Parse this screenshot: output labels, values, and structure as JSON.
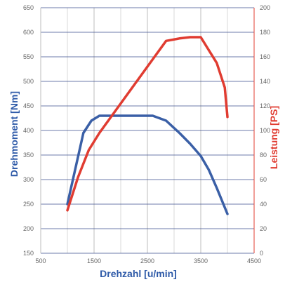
{
  "chart_data": {
    "type": "line",
    "x_axis": {
      "label": "Drehzahl [u/min]",
      "range": [
        500,
        4500
      ],
      "ticks": [
        500,
        1500,
        2500,
        3500,
        4500
      ],
      "minor_gridlines": [
        1000,
        2000,
        3000,
        4000
      ],
      "color": "#2e5aa8"
    },
    "y_left": {
      "label": "Drehmoment [Nm]",
      "range": [
        150,
        650
      ],
      "ticks": [
        150,
        200,
        250,
        300,
        350,
        400,
        450,
        500,
        550,
        600,
        650
      ],
      "color": "#2e5aa8"
    },
    "y_right": {
      "label": "Leistung [PS]",
      "range": [
        0,
        200
      ],
      "ticks": [
        0,
        20,
        40,
        60,
        80,
        100,
        120,
        140,
        160,
        180,
        200
      ],
      "color": "#e03c31"
    },
    "grid": true,
    "series": [
      {
        "axis": "left",
        "color": "#3a5fa6",
        "x": [
          1000,
          1300,
          1450,
          1600,
          2000,
          2600,
          2850,
          3100,
          3300,
          3500,
          3650,
          3800,
          4000
        ],
        "y": [
          250,
          395,
          420,
          430,
          430,
          430,
          420,
          395,
          373,
          348,
          320,
          283,
          230
        ]
      },
      {
        "axis": "right",
        "color": "#e03c31",
        "x": [
          1000,
          1200,
          1400,
          1600,
          2000,
          2400,
          2600,
          2850,
          3100,
          3300,
          3500,
          3800,
          3950,
          4000
        ],
        "y": [
          35,
          62,
          84,
          98,
          122,
          146,
          158,
          173,
          175,
          176,
          176,
          155,
          135,
          111
        ]
      }
    ]
  }
}
